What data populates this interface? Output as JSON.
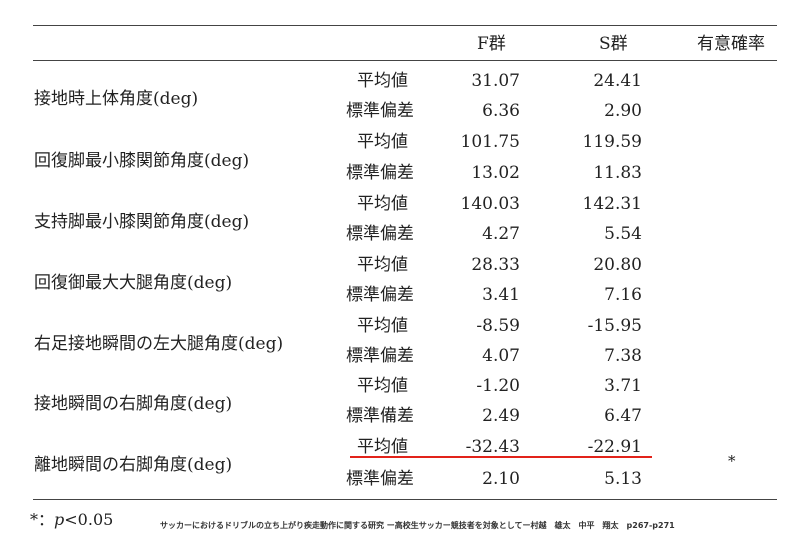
{
  "header": {
    "f_group": "F群",
    "s_group": "S群",
    "significance": "有意確率"
  },
  "stat_labels": {
    "mean": "平均値",
    "sd": "標準偏差",
    "sd_variant": "標準備差"
  },
  "rows": [
    {
      "measure": "接地時上体角度(deg)",
      "mean_f": "31.07",
      "mean_s": "24.41",
      "sd_f": "6.36",
      "sd_s": "2.90"
    },
    {
      "measure": "回復脚最小膝関節角度(deg)",
      "mean_f": "101.75",
      "mean_s": "119.59",
      "sd_f": "13.02",
      "sd_s": "11.83"
    },
    {
      "measure": "支持脚最小膝関節角度(deg)",
      "mean_f": "140.03",
      "mean_s": "142.31",
      "sd_f": "4.27",
      "sd_s": "5.54"
    },
    {
      "measure": "回復御最大大腿角度(deg)",
      "mean_f": "28.33",
      "mean_s": "20.80",
      "sd_f": "3.41",
      "sd_s": "7.16"
    },
    {
      "measure": "右足接地瞬間の左大腿角度(deg)",
      "mean_f": "-8.59",
      "mean_s": "-15.95",
      "sd_f": "4.07",
      "sd_s": "7.38"
    },
    {
      "measure": "接地瞬間の右脚角度(deg)",
      "mean_f": "-1.20",
      "mean_s": "3.71",
      "sd_f": "2.49",
      "sd_s": "6.47"
    },
    {
      "measure": "離地瞬間の右脚角度(deg)",
      "mean_f": "-32.43",
      "mean_s": "-22.91",
      "sd_f": "2.10",
      "sd_s": "5.13",
      "significance": "*"
    }
  ],
  "highlight_color": "#e2231a",
  "footnote": {
    "marker": "*：",
    "p_symbol": "p",
    "threshold": "<0.05"
  },
  "citation": "サッカーにおけるドリブルの立ち上がり疾走動作に関する研究 ー高校生サッカー競技者を対象としてー村越　雄太　中平　翔太　p267-p271"
}
